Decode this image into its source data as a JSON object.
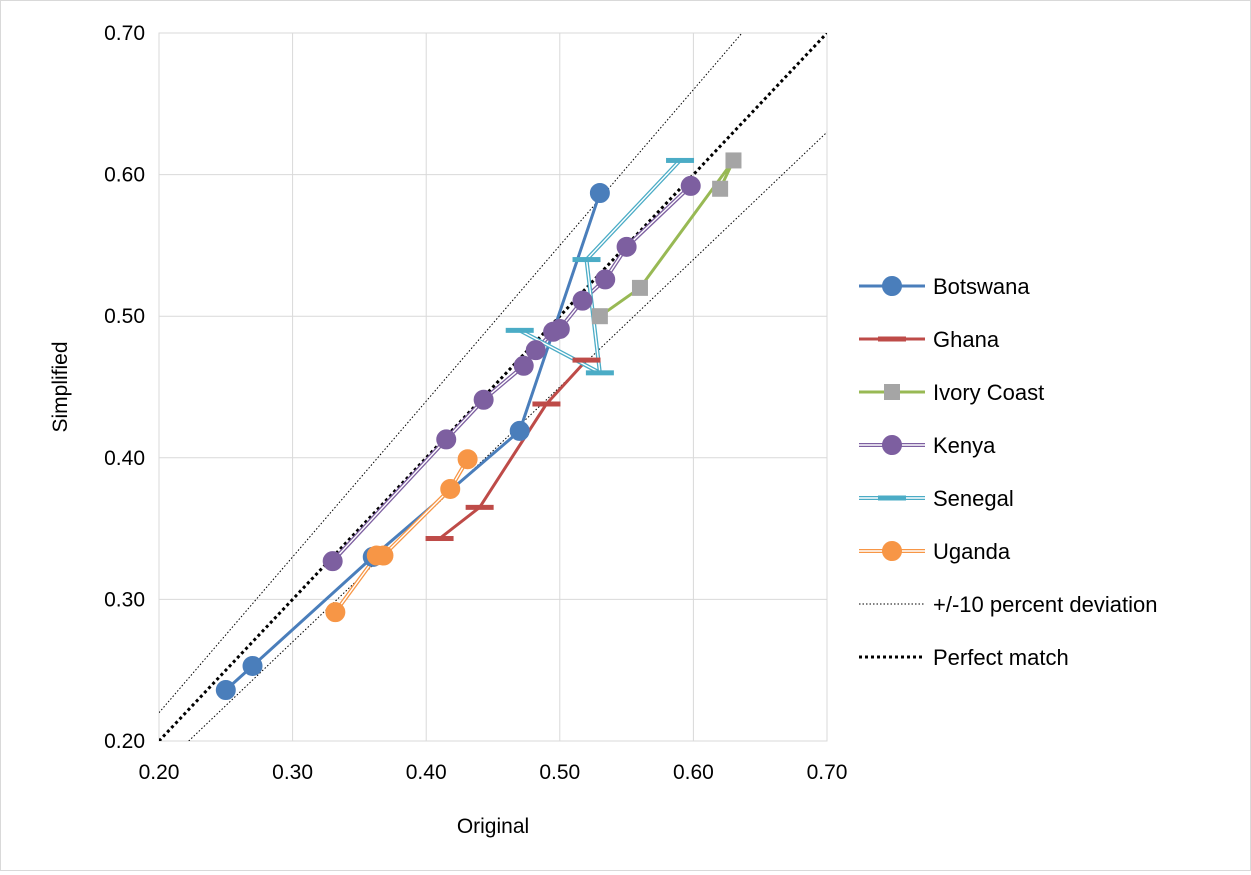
{
  "chart_data": {
    "type": "scatter",
    "title": "",
    "xlabel": "Original",
    "ylabel": "Simplified",
    "xlim": [
      0.2,
      0.7
    ],
    "ylim": [
      0.2,
      0.7
    ],
    "xticks": [
      "0.20",
      "0.30",
      "0.40",
      "0.50",
      "0.60",
      "0.70"
    ],
    "yticks": [
      "0.20",
      "0.30",
      "0.40",
      "0.50",
      "0.60",
      "0.70"
    ],
    "grid": true,
    "legend_position": "right",
    "series": [
      {
        "name": "Botswana",
        "color": "#4a7ebb",
        "marker": "circle",
        "line": "solid",
        "points": [
          [
            0.25,
            0.236
          ],
          [
            0.27,
            0.253
          ],
          [
            0.36,
            0.33
          ],
          [
            0.47,
            0.419
          ],
          [
            0.53,
            0.587
          ]
        ]
      },
      {
        "name": "Ghana",
        "color": "#be4b48",
        "marker": "dash",
        "line": "solid",
        "points": [
          [
            0.41,
            0.343
          ],
          [
            0.44,
            0.365
          ],
          [
            0.49,
            0.438
          ],
          [
            0.52,
            0.469
          ]
        ]
      },
      {
        "name": "Ivory Coast",
        "color": "#98b954",
        "marker": "square",
        "line": "solid",
        "points": [
          [
            0.53,
            0.5
          ],
          [
            0.56,
            0.52
          ],
          [
            0.63,
            0.61
          ],
          [
            0.62,
            0.59
          ]
        ]
      },
      {
        "name": "Kenya",
        "color": "#7d5fa0",
        "marker": "circle",
        "line": "double",
        "points": [
          [
            0.33,
            0.327
          ],
          [
            0.415,
            0.413
          ],
          [
            0.443,
            0.441
          ],
          [
            0.473,
            0.465
          ],
          [
            0.482,
            0.476
          ],
          [
            0.495,
            0.489
          ],
          [
            0.5,
            0.491
          ],
          [
            0.517,
            0.511
          ],
          [
            0.534,
            0.526
          ],
          [
            0.55,
            0.549
          ],
          [
            0.598,
            0.592
          ]
        ]
      },
      {
        "name": "Senegal",
        "color": "#4bacc6",
        "marker": "dash",
        "line": "double",
        "points": [
          [
            0.47,
            0.49
          ],
          [
            0.53,
            0.46
          ],
          [
            0.52,
            0.54
          ],
          [
            0.59,
            0.61
          ]
        ]
      },
      {
        "name": "Uganda",
        "color": "#f79646",
        "marker": "circle",
        "line": "double",
        "points": [
          [
            0.332,
            0.291
          ],
          [
            0.363,
            0.331
          ],
          [
            0.368,
            0.331
          ],
          [
            0.418,
            0.378
          ],
          [
            0.431,
            0.399
          ]
        ]
      },
      {
        "name": "+/-10 percent deviation",
        "color": "#000000",
        "marker": "none",
        "line": "fine-dotted",
        "lines": [
          [
            [
              0.2,
              0.22
            ],
            [
              0.6364,
              0.7
            ]
          ],
          [
            [
              0.2222,
              0.2
            ],
            [
              0.7,
              0.63
            ]
          ]
        ]
      },
      {
        "name": "Perfect match",
        "color": "#000000",
        "marker": "none",
        "line": "bold-dotted",
        "lines": [
          [
            [
              0.2,
              0.2
            ],
            [
              0.7,
              0.7
            ]
          ]
        ]
      }
    ]
  }
}
